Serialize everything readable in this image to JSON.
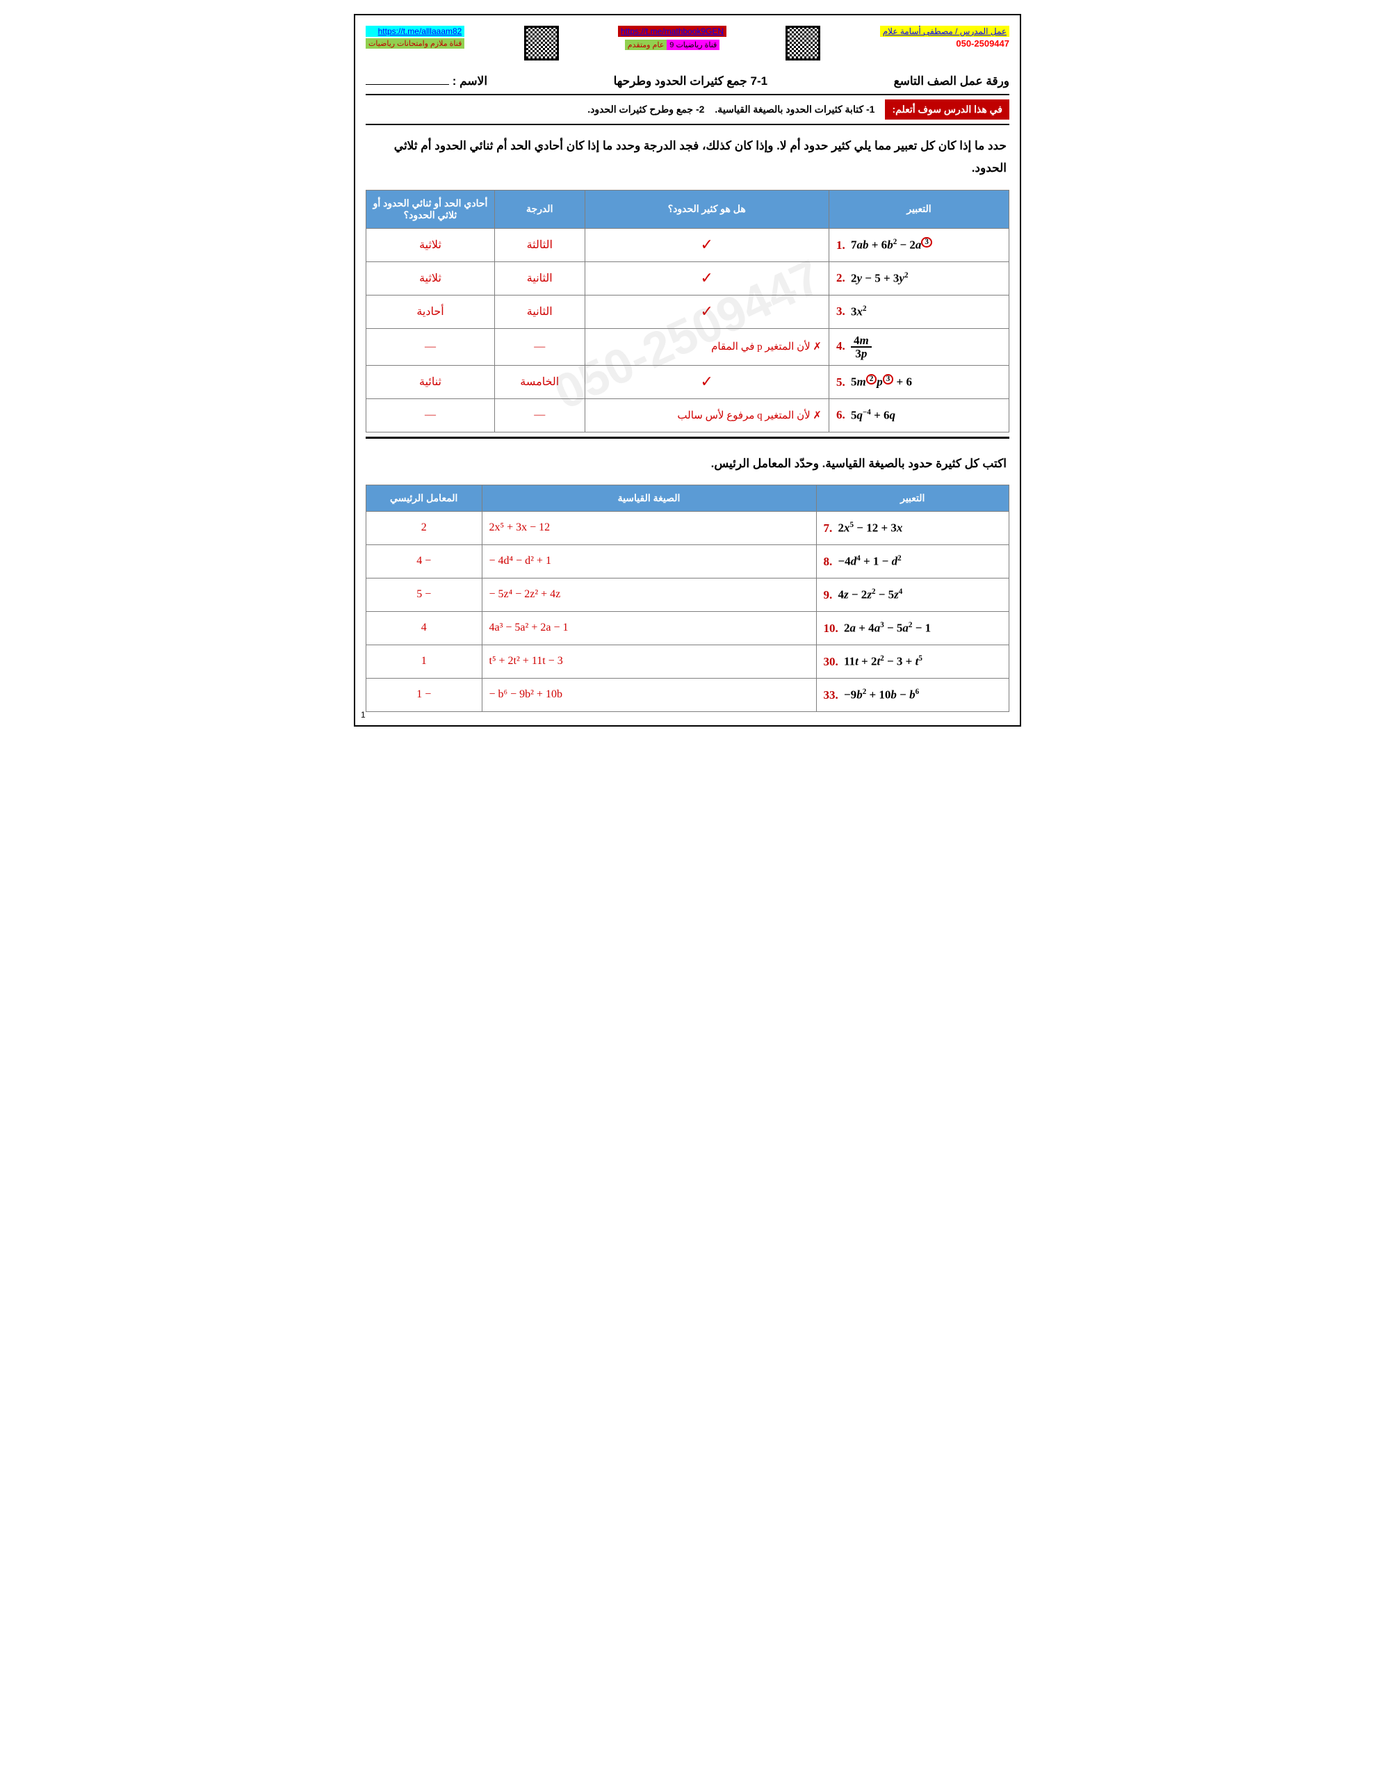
{
  "header": {
    "link_right": "https://t.me/alllaaam82",
    "link_right_sub": "قناة ملازم وامتحانات رياضيات",
    "link_center": "https://t.me/mathbook9GEN",
    "link_center_sub_a": "قناة رياضيات 9",
    "link_center_sub_b": "عام ومتقدم",
    "teacher_label": "عمل المدرس / مصطفى أسامة علام",
    "teacher_phone": "050-2509447"
  },
  "title": {
    "grade": "ورقة عمل الصف التاسع",
    "lesson": "7-1  جمع كثيرات الحدود وطرحها",
    "name_label": "الاسم :"
  },
  "learn": {
    "badge": "في هذا الدرس سوف أتعلم:",
    "item1": "1- كتابة كثيرات الحدود بالصيغة القياسية.",
    "item2": "2- جمع وطرح كثيرات الحدود."
  },
  "section1": {
    "instruction": "حدد ما إذا كان كل تعبير مما يلي كثير حدود أم لا. وإذا كان كذلك، فجد الدرجة وحدد ما إذا كان أحادي الحد أم ثنائي الحدود أم ثلاثي الحدود.",
    "headers": {
      "expr": "التعبير",
      "is_poly": "هل هو كثير الحدود؟",
      "degree": "الدرجة",
      "type": "أحادي الحد أو ثنائي الحدود أو ثلاثي الحدود؟"
    },
    "rows": [
      {
        "num": "1.",
        "expr_html": "7<i>ab</i> + 6<i>b</i><sup>2</sup> − 2<i>a</i><sup><span class='circle'>3</span></sup>",
        "poly": "✓",
        "poly_note": "",
        "degree": "الثالثة",
        "type": "ثلاثية"
      },
      {
        "num": "2.",
        "expr_html": "2<i>y</i> − 5 + 3<i>y</i><sup>2</sup>",
        "poly": "✓",
        "poly_note": "",
        "degree": "الثانية",
        "type": "ثلاثية"
      },
      {
        "num": "3.",
        "expr_html": "3<i>x</i><sup>2</sup>",
        "poly": "✓",
        "poly_note": "",
        "degree": "الثانية",
        "type": "أحادية"
      },
      {
        "num": "4.",
        "expr_html": "<span class='frac'><span class='top'>4<i>m</i></span><span class='bot'>3<i>p</i></span></span>",
        "poly": "✗",
        "poly_note": "لأن المتغير p في المقام",
        "degree": "—",
        "type": "—"
      },
      {
        "num": "5.",
        "expr_html": "5<i>m</i><sup><span class='circle'>2</span></sup><i>p</i><sup><span class='circle'>3</span></sup> + 6",
        "poly": "✓",
        "poly_note": "",
        "degree": "الخامسة",
        "type": "ثنائية"
      },
      {
        "num": "6.",
        "expr_html": "5<i>q</i><sup>−4</sup> + 6<i>q</i>",
        "poly": "✗",
        "poly_note": "لأن المتغير q مرفوع لأس سالب",
        "degree": "—",
        "type": "—"
      }
    ]
  },
  "section2": {
    "instruction": "اكتب كل كثيرة حدود بالصيغة القياسية. وحدّد المعامل الرئيس.",
    "headers": {
      "expr": "التعبير",
      "standard": "الصيغة القياسية",
      "lead": "المعامل الرئيسي"
    },
    "rows": [
      {
        "num": "7.",
        "expr_html": "2<i>x</i><sup>5</sup> − 12 + 3<i>x</i>",
        "standard": "2x⁵ + 3x − 12",
        "lead": "2"
      },
      {
        "num": "8.",
        "expr_html": "−4<i>d</i><sup>4</sup> + 1 − <i>d</i><sup>2</sup>",
        "standard": "− 4d⁴ − d² + 1",
        "lead": "− 4"
      },
      {
        "num": "9.",
        "expr_html": "4<i>z</i> − 2<i>z</i><sup>2</sup> − 5<i>z</i><sup>4</sup>",
        "standard": "− 5z⁴ − 2z² + 4z",
        "lead": "− 5"
      },
      {
        "num": "10.",
        "expr_html": "2<i>a</i> + 4<i>a</i><sup>3</sup> − 5<i>a</i><sup>2</sup> − 1",
        "standard": "4a³ − 5a² + 2a − 1",
        "lead": "4"
      },
      {
        "num": "30.",
        "expr_html": "11<i>t</i> + 2<i>t</i><sup>2</sup> − 3 + <i>t</i><sup>5</sup>",
        "standard": "t⁵ + 2t² + 11t − 3",
        "lead": "1"
      },
      {
        "num": "33.",
        "expr_html": "−9<i>b</i><sup>2</sup> + 10<i>b</i> − <i>b</i><sup>6</sup>",
        "standard": "− b⁶ − 9b² + 10b",
        "lead": "− 1"
      }
    ]
  },
  "page_number": "1",
  "watermark": "050-2509447"
}
